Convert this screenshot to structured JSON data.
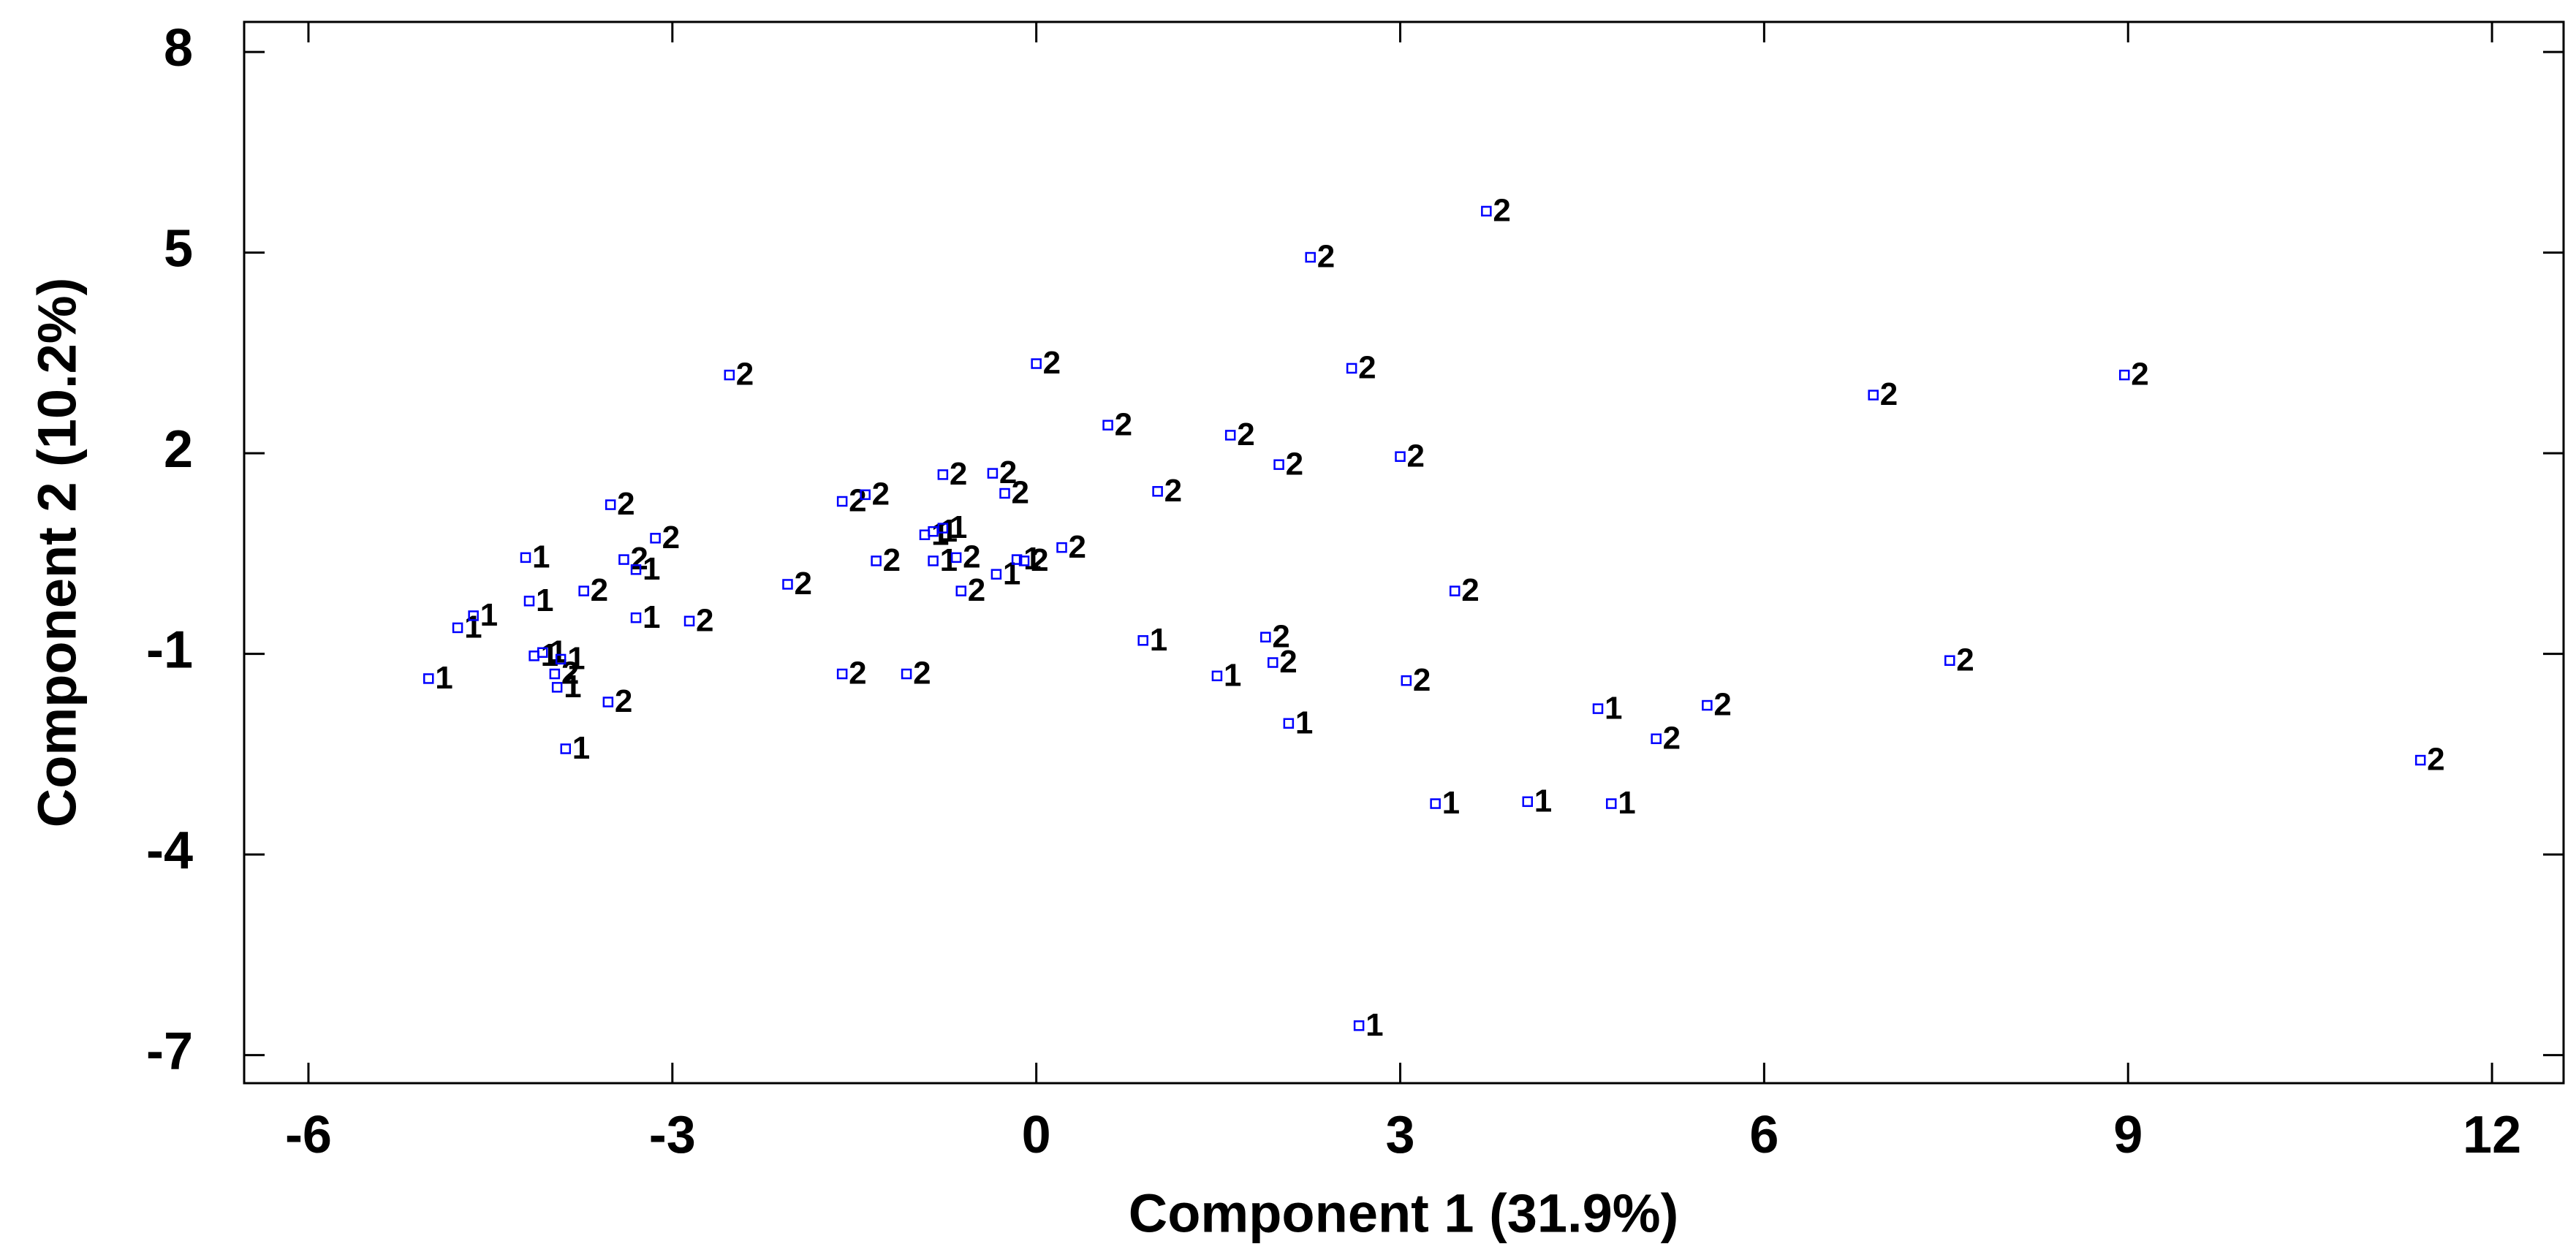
{
  "chart_data": {
    "type": "scatter",
    "x_label": "Component 1 (31.9%)",
    "y_label": "Component 2 (10.2%)",
    "xlim": [
      -6.53,
      12.59
    ],
    "ylim": [
      -7.42,
      8.45
    ],
    "xticks": [
      -6,
      -3,
      0,
      3,
      6,
      9,
      12
    ],
    "yticks": [
      -7,
      -4,
      -1,
      2,
      5,
      8
    ],
    "color": "#0000ff",
    "x": [
      -5.01,
      -4.77,
      -4.64,
      -4.21,
      -4.18,
      -4.14,
      -4.07,
      -3.97,
      -3.95,
      -3.92,
      -3.88,
      -3.73,
      -3.53,
      -3.51,
      -3.4,
      -3.3,
      -3.3,
      -3.14,
      -2.86,
      -2.53,
      -2.05,
      -1.6,
      -1.6,
      -1.41,
      -1.32,
      -1.07,
      -0.92,
      -0.85,
      -0.85,
      -0.77,
      -0.77,
      -0.66,
      -0.62,
      -0.36,
      -0.33,
      -0.26,
      -0.16,
      -0.1,
      0.0,
      0.21,
      0.59,
      0.88,
      1.0,
      1.49,
      1.6,
      1.89,
      1.95,
      2.0,
      2.08,
      2.26,
      2.6,
      2.66,
      3.0,
      3.05,
      3.29,
      3.45,
      3.71,
      4.05,
      4.63,
      4.74,
      5.11,
      5.53,
      6.9,
      7.53,
      8.97,
      11.41
    ],
    "y": [
      -1.37,
      -0.61,
      -0.43,
      0.44,
      -0.21,
      -1.03,
      -0.98,
      -1.3,
      -1.5,
      -1.08,
      -2.42,
      -0.06,
      -1.72,
      1.23,
      0.41,
      0.26,
      -0.46,
      0.73,
      -0.51,
      3.17,
      0.04,
      1.28,
      -1.3,
      1.38,
      0.39,
      -1.3,
      0.78,
      0.83,
      0.39,
      1.68,
      0.88,
      0.44,
      -0.06,
      1.7,
      0.19,
      1.4,
      0.41,
      0.39,
      3.34,
      0.59,
      2.42,
      -0.8,
      1.43,
      -1.33,
      2.27,
      -0.75,
      -1.13,
      1.83,
      -2.04,
      4.93,
      3.27,
      -6.56,
      1.95,
      -1.4,
      -3.24,
      -0.06,
      5.62,
      -3.21,
      -1.82,
      -3.24,
      -2.27,
      -1.77,
      2.87,
      -1.1,
      3.17,
      -2.59
    ],
    "labels": [
      "1",
      "1",
      "1",
      "1",
      "1",
      "1",
      "1",
      "2",
      "1",
      "1",
      "1",
      "2",
      "2",
      "2",
      "2",
      "1",
      "1",
      "2",
      "2",
      "2",
      "2",
      "2",
      "2",
      "2",
      "2",
      "2",
      "1",
      "1",
      "1",
      "2",
      "1",
      "2",
      "2",
      "2",
      "1",
      "2",
      "1",
      "2",
      "2",
      "2",
      "2",
      "1",
      "2",
      "1",
      "2",
      "2",
      "2",
      "2",
      "1",
      "2",
      "2",
      "1",
      "2",
      "2",
      "1",
      "2",
      "2",
      "1",
      "1",
      "1",
      "2",
      "2",
      "2",
      "2",
      "2",
      "2"
    ]
  }
}
